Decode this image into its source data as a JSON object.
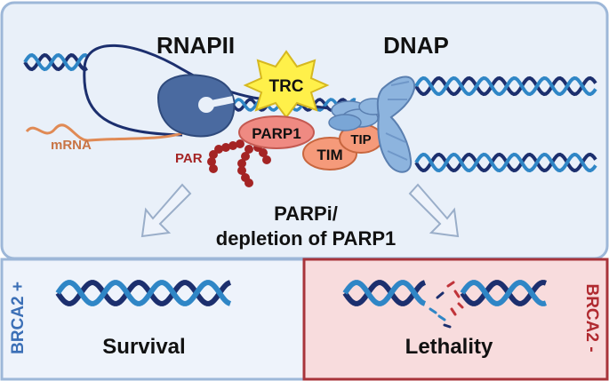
{
  "top_panel": {
    "rnapii_label": "RNAPII",
    "dnap_label": "DNAP",
    "trc_label": "TRC",
    "parp1_label": "PARP1",
    "tim_label": "TIM",
    "tip_label": "TIP",
    "mrna_label": "mRNA",
    "par_label": "PAR",
    "treatment_line1": "PARPi/",
    "treatment_line2": "depletion of PARP1"
  },
  "left_panel": {
    "side_label": "BRCA2 +",
    "outcome": "Survival"
  },
  "right_panel": {
    "side_label": "BRCA2 -",
    "outcome": "Lethality"
  },
  "colors": {
    "top_bg": "#e9f0f9",
    "top_border": "#9db7d8",
    "left_bg": "#eef3fb",
    "right_bg": "#f8dcdd",
    "right_border": "#a8343a",
    "dna_dark": "#1c2f6e",
    "dna_light": "#2f86c6",
    "rnapii": "#4a6aa0",
    "dnap": "#8db4de",
    "trc_star": "#fff04a",
    "parp1": "#ef8a82",
    "tim_tip": "#f59a7a",
    "par_beads": "#a42424",
    "mrna": "#e08a55",
    "brca_plus": "#3b6fb6",
    "brca_minus": "#b02a30"
  }
}
